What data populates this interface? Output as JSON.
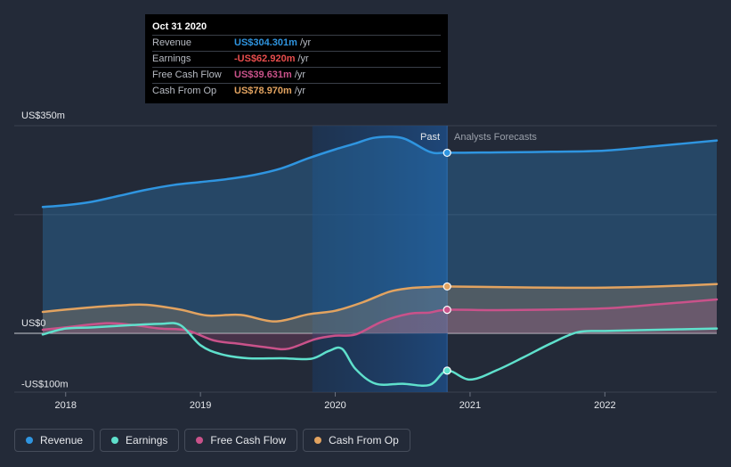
{
  "tooltip": {
    "date": "Oct 31 2020",
    "rows": [
      {
        "label": "Revenue",
        "value": "US$304.301m",
        "unit": "/yr",
        "color": "#2f95e0"
      },
      {
        "label": "Earnings",
        "value": "-US$62.920m",
        "unit": "/yr",
        "color": "#e84d4d"
      },
      {
        "label": "Free Cash Flow",
        "value": "US$39.631m",
        "unit": "/yr",
        "color": "#c9528a"
      },
      {
        "label": "Cash From Op",
        "value": "US$78.970m",
        "unit": "/yr",
        "color": "#e2a360"
      }
    ]
  },
  "legend": [
    {
      "label": "Revenue",
      "color": "#2f95e0"
    },
    {
      "label": "Earnings",
      "color": "#5fe0cc"
    },
    {
      "label": "Free Cash Flow",
      "color": "#c9528a"
    },
    {
      "label": "Cash From Op",
      "color": "#e2a360"
    }
  ],
  "chart_data": {
    "type": "line",
    "y_ticks": [
      {
        "value": 350,
        "label": "US$350m"
      },
      {
        "value": 0,
        "label": "US$0"
      },
      {
        "value": -100,
        "label": "-US$100m"
      }
    ],
    "x_ticks": [
      {
        "value": 2018,
        "label": "2018"
      },
      {
        "value": 2019,
        "label": "2019"
      },
      {
        "value": 2020,
        "label": "2020"
      },
      {
        "value": 2021,
        "label": "2021"
      },
      {
        "value": 2022,
        "label": "2022"
      }
    ],
    "xlim": [
      2017.63,
      2022.83
    ],
    "ylim": [
      -100,
      350
    ],
    "divider_x": 2020.83,
    "past_label": "Past",
    "forecast_label": "Analysts Forecasts",
    "past_band_start": 2019.83,
    "series": [
      {
        "name": "Revenue",
        "color": "#2f95e0",
        "fill": true,
        "points": [
          [
            2017.83,
            213
          ],
          [
            2018.0,
            216
          ],
          [
            2018.2,
            222
          ],
          [
            2018.4,
            232
          ],
          [
            2018.6,
            242
          ],
          [
            2018.8,
            250
          ],
          [
            2019.0,
            255
          ],
          [
            2019.2,
            260
          ],
          [
            2019.4,
            267
          ],
          [
            2019.6,
            278
          ],
          [
            2019.8,
            295
          ],
          [
            2020.0,
            310
          ],
          [
            2020.15,
            320
          ],
          [
            2020.3,
            330
          ],
          [
            2020.5,
            329
          ],
          [
            2020.7,
            306
          ],
          [
            2020.83,
            304.301
          ],
          [
            2021.2,
            305
          ],
          [
            2021.6,
            306
          ],
          [
            2022.0,
            308
          ],
          [
            2022.4,
            316
          ],
          [
            2022.83,
            325
          ]
        ]
      },
      {
        "name": "Cash From Op",
        "color": "#e2a360",
        "fill": true,
        "points": [
          [
            2017.83,
            36
          ],
          [
            2018.0,
            40
          ],
          [
            2018.2,
            44
          ],
          [
            2018.4,
            47
          ],
          [
            2018.6,
            48
          ],
          [
            2018.85,
            40
          ],
          [
            2019.05,
            30
          ],
          [
            2019.3,
            31
          ],
          [
            2019.55,
            20
          ],
          [
            2019.8,
            32
          ],
          [
            2020.0,
            38
          ],
          [
            2020.2,
            52
          ],
          [
            2020.4,
            70
          ],
          [
            2020.55,
            76
          ],
          [
            2020.7,
            78
          ],
          [
            2020.83,
            78.97
          ],
          [
            2021.2,
            78
          ],
          [
            2021.6,
            77
          ],
          [
            2022.0,
            77
          ],
          [
            2022.4,
            79
          ],
          [
            2022.83,
            83
          ]
        ]
      },
      {
        "name": "Free Cash Flow",
        "color": "#c9528a",
        "fill": true,
        "points": [
          [
            2017.83,
            6
          ],
          [
            2018.0,
            10
          ],
          [
            2018.3,
            17
          ],
          [
            2018.5,
            14
          ],
          [
            2018.7,
            8
          ],
          [
            2018.9,
            5
          ],
          [
            2019.1,
            -12
          ],
          [
            2019.3,
            -18
          ],
          [
            2019.5,
            -24
          ],
          [
            2019.65,
            -26
          ],
          [
            2019.85,
            -10
          ],
          [
            2020.0,
            -4
          ],
          [
            2020.15,
            -2
          ],
          [
            2020.35,
            20
          ],
          [
            2020.55,
            33
          ],
          [
            2020.7,
            35
          ],
          [
            2020.83,
            39.631
          ],
          [
            2021.2,
            39
          ],
          [
            2021.6,
            40
          ],
          [
            2022.0,
            42
          ],
          [
            2022.4,
            49
          ],
          [
            2022.83,
            57
          ]
        ]
      },
      {
        "name": "Earnings",
        "color": "#5fe0cc",
        "fill": false,
        "points": [
          [
            2017.83,
            -2
          ],
          [
            2018.0,
            8
          ],
          [
            2018.2,
            10
          ],
          [
            2018.5,
            14
          ],
          [
            2018.7,
            16
          ],
          [
            2018.85,
            14
          ],
          [
            2019.0,
            -20
          ],
          [
            2019.15,
            -35
          ],
          [
            2019.35,
            -42
          ],
          [
            2019.6,
            -42
          ],
          [
            2019.82,
            -43
          ],
          [
            2019.95,
            -30
          ],
          [
            2020.05,
            -26
          ],
          [
            2020.15,
            -60
          ],
          [
            2020.3,
            -85
          ],
          [
            2020.5,
            -85
          ],
          [
            2020.7,
            -87
          ],
          [
            2020.83,
            -62.92
          ],
          [
            2021.0,
            -78
          ],
          [
            2021.2,
            -62
          ],
          [
            2021.4,
            -40
          ],
          [
            2021.6,
            -17
          ],
          [
            2021.8,
            2
          ],
          [
            2022.0,
            4
          ],
          [
            2022.4,
            6
          ],
          [
            2022.83,
            8
          ]
        ]
      }
    ]
  }
}
